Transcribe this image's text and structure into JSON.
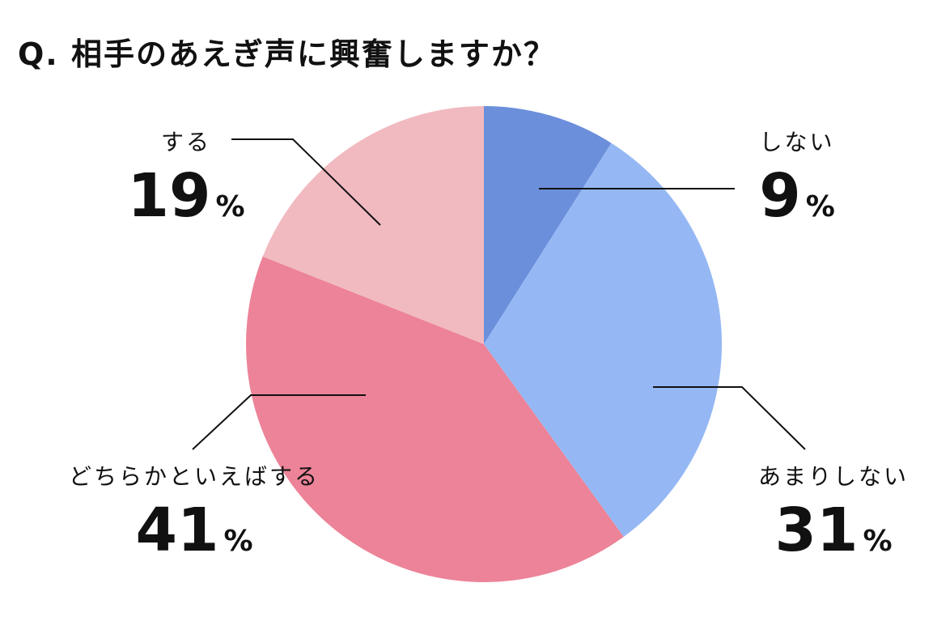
{
  "chart_data": {
    "type": "pie",
    "title": "Q. 相手のあえぎ声に興奮しますか？",
    "unit": "%",
    "slices": [
      {
        "label": "しない",
        "value": 9,
        "color": "#6b8fdb"
      },
      {
        "label": "あまりしない",
        "value": 31,
        "color": "#95b8f4"
      },
      {
        "label": "どちらかといえばする",
        "value": 41,
        "color": "#ec8398"
      },
      {
        "label": "する",
        "value": 19,
        "color": "#f1b9c0"
      }
    ]
  }
}
